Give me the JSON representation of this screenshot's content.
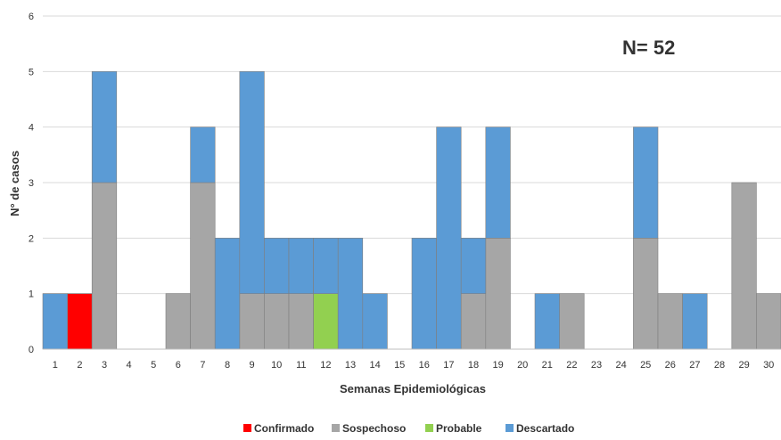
{
  "chart_data": {
    "type": "bar",
    "stacked": true,
    "title": "",
    "annotation": "N= 52",
    "xlabel": "Semanas Epidemiológicas",
    "ylabel": "N° de casos",
    "ylim": [
      0,
      6
    ],
    "yticks": [
      "0",
      "1",
      "2",
      "3",
      "4",
      "5",
      "6"
    ],
    "grid": true,
    "legend_position": "bottom",
    "categories": [
      "1",
      "2",
      "3",
      "4",
      "5",
      "6",
      "7",
      "8",
      "9",
      "10",
      "11",
      "12",
      "13",
      "14",
      "15",
      "16",
      "17",
      "18",
      "19",
      "20",
      "21",
      "22",
      "23",
      "24",
      "25",
      "26",
      "27",
      "28",
      "29",
      "30"
    ],
    "series": [
      {
        "name": "Confirmado",
        "color": "#ff0000",
        "values": [
          0,
          1,
          0,
          0,
          0,
          0,
          0,
          0,
          0,
          0,
          0,
          0,
          0,
          0,
          0,
          0,
          0,
          0,
          0,
          0,
          0,
          0,
          0,
          0,
          0,
          0,
          0,
          0,
          0,
          0
        ]
      },
      {
        "name": "Sospechoso",
        "color": "#a6a6a6",
        "values": [
          0,
          0,
          3,
          0,
          0,
          1,
          3,
          0,
          1,
          1,
          1,
          0,
          0,
          0,
          0,
          0,
          0,
          1,
          2,
          0,
          0,
          1,
          0,
          0,
          2,
          1,
          0,
          0,
          3,
          1
        ]
      },
      {
        "name": "Probable",
        "color": "#92d050",
        "values": [
          0,
          0,
          0,
          0,
          0,
          0,
          0,
          0,
          0,
          0,
          0,
          1,
          0,
          0,
          0,
          0,
          0,
          0,
          0,
          0,
          0,
          0,
          0,
          0,
          0,
          0,
          0,
          0,
          0,
          0
        ]
      },
      {
        "name": "Descartado",
        "color": "#5b9bd5",
        "values": [
          1,
          0,
          2,
          0,
          0,
          0,
          1,
          2,
          4,
          1,
          1,
          1,
          2,
          1,
          0,
          2,
          4,
          1,
          2,
          0,
          1,
          0,
          0,
          0,
          2,
          0,
          1,
          0,
          0,
          0
        ]
      }
    ]
  }
}
